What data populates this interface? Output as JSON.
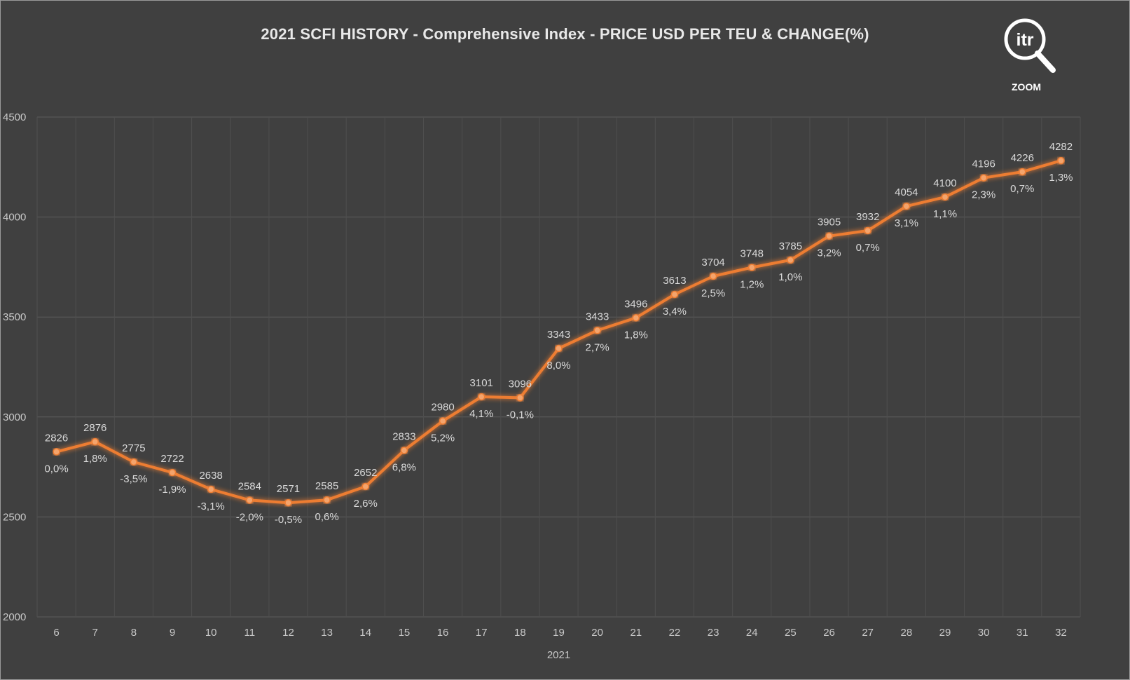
{
  "chart_data": {
    "type": "line",
    "title": "2021 SCFI HISTORY - Comprehensive Index - PRICE USD PER TEU & CHANGE(%)",
    "xlabel": "2021",
    "ylabel": "",
    "ylim": [
      2000,
      4500
    ],
    "yticks": [
      "2000",
      "2500",
      "3000",
      "3500",
      "4000",
      "4500"
    ],
    "categories": [
      "6",
      "7",
      "8",
      "9",
      "10",
      "11",
      "12",
      "13",
      "14",
      "15",
      "16",
      "17",
      "18",
      "19",
      "20",
      "21",
      "22",
      "23",
      "24",
      "25",
      "26",
      "27",
      "28",
      "29",
      "30",
      "31",
      "32"
    ],
    "series": [
      {
        "values": [
          2826,
          2876,
          2775,
          2722,
          2638,
          2584,
          2571,
          2585,
          2652,
          2833,
          2980,
          3101,
          3096,
          3343,
          3433,
          3496,
          3613,
          3704,
          3748,
          3785,
          3905,
          3932,
          4054,
          4100,
          4196,
          4226,
          4282
        ],
        "value_labels": [
          "2826",
          "2876",
          "2775",
          "2722",
          "2638",
          "2584",
          "2571",
          "2585",
          "2652",
          "2833",
          "2980",
          "3101",
          "3096",
          "3343",
          "3433",
          "3496",
          "3613",
          "3704",
          "3748",
          "3785",
          "3905",
          "3932",
          "4054",
          "4100",
          "4196",
          "4226",
          "4282"
        ],
        "change_labels": [
          "0,0%",
          "1,8%",
          "-3,5%",
          "-1,9%",
          "-3,1%",
          "-2,0%",
          "-0,5%",
          "0,6%",
          "2,6%",
          "6,8%",
          "5,2%",
          "4,1%",
          "-0,1%",
          "8,0%",
          "2,7%",
          "1,8%",
          "3,4%",
          "2,5%",
          "1,2%",
          "1,0%",
          "3,2%",
          "0,7%",
          "3,1%",
          "1,1%",
          "2,3%",
          "0,7%",
          "1,3%"
        ]
      }
    ],
    "grid": true,
    "legend": "none",
    "line_color": "#ed7d31",
    "background_color": "#404040"
  },
  "logo": {
    "text": "itr",
    "caption": "ZOOM",
    "icon": "magnifier-icon"
  }
}
